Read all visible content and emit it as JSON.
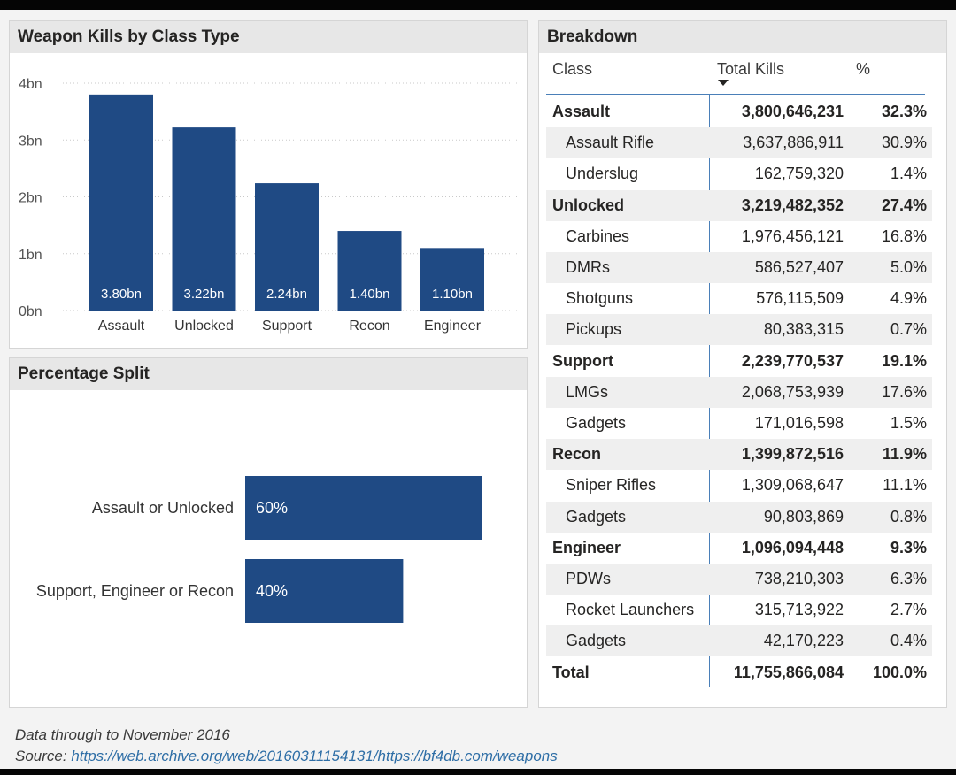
{
  "chart_data": [
    {
      "type": "bar",
      "title": "Weapon Kills by Class Type",
      "categories": [
        "Assault",
        "Unlocked",
        "Support",
        "Recon",
        "Engineer"
      ],
      "values": [
        3.8,
        3.22,
        2.24,
        1.4,
        1.1
      ],
      "data_labels": [
        "3.80bn",
        "3.22bn",
        "2.24bn",
        "1.40bn",
        "1.10bn"
      ],
      "yticks": [
        "0bn",
        "1bn",
        "2bn",
        "3bn",
        "4bn"
      ],
      "ylim": [
        0,
        4
      ],
      "grid": true,
      "bar_color": "#1f4a84"
    },
    {
      "type": "bar",
      "orientation": "horizontal",
      "title": "Percentage Split",
      "categories": [
        "Assault or Unlocked",
        "Support, Engineer or Recon"
      ],
      "values": [
        60,
        40
      ],
      "data_labels": [
        "60%",
        "40%"
      ],
      "bar_color": "#1f4a84"
    },
    {
      "type": "table",
      "title": "Breakdown",
      "columns": [
        "Class",
        "Total Kills",
        "%"
      ],
      "sorted_column": "Total Kills",
      "rows": [
        {
          "name": "Assault",
          "kills": "3,800,646,231",
          "pct": "32.3%",
          "level": "group"
        },
        {
          "name": "Assault Rifle",
          "kills": "3,637,886,911",
          "pct": "30.9%",
          "level": "item"
        },
        {
          "name": "Underslug",
          "kills": "162,759,320",
          "pct": "1.4%",
          "level": "item"
        },
        {
          "name": "Unlocked",
          "kills": "3,219,482,352",
          "pct": "27.4%",
          "level": "group"
        },
        {
          "name": "Carbines",
          "kills": "1,976,456,121",
          "pct": "16.8%",
          "level": "item"
        },
        {
          "name": "DMRs",
          "kills": "586,527,407",
          "pct": "5.0%",
          "level": "item"
        },
        {
          "name": "Shotguns",
          "kills": "576,115,509",
          "pct": "4.9%",
          "level": "item"
        },
        {
          "name": "Pickups",
          "kills": "80,383,315",
          "pct": "0.7%",
          "level": "item"
        },
        {
          "name": "Support",
          "kills": "2,239,770,537",
          "pct": "19.1%",
          "level": "group"
        },
        {
          "name": "LMGs",
          "kills": "2,068,753,939",
          "pct": "17.6%",
          "level": "item"
        },
        {
          "name": "Gadgets",
          "kills": "171,016,598",
          "pct": "1.5%",
          "level": "item"
        },
        {
          "name": "Recon",
          "kills": "1,399,872,516",
          "pct": "11.9%",
          "level": "group"
        },
        {
          "name": "Sniper Rifles",
          "kills": "1,309,068,647",
          "pct": "11.1%",
          "level": "item"
        },
        {
          "name": "Gadgets",
          "kills": "90,803,869",
          "pct": "0.8%",
          "level": "item"
        },
        {
          "name": "Engineer",
          "kills": "1,096,094,448",
          "pct": "9.3%",
          "level": "group"
        },
        {
          "name": "PDWs",
          "kills": "738,210,303",
          "pct": "6.3%",
          "level": "item"
        },
        {
          "name": "Rocket Launchers",
          "kills": "315,713,922",
          "pct": "2.7%",
          "level": "item"
        },
        {
          "name": "Gadgets",
          "kills": "42,170,223",
          "pct": "0.4%",
          "level": "item"
        },
        {
          "name": "Total",
          "kills": "11,755,866,084",
          "pct": "100.0%",
          "level": "total"
        }
      ]
    }
  ],
  "footer": {
    "note": "Data through to November 2016",
    "source_label": "Source:",
    "source_url": "https://web.archive.org/web/20160311154131/https://bf4db.com/weapons"
  },
  "colors": {
    "bar": "#1f4a84",
    "header_bg": "#e7e7e7",
    "link": "#2e6ea6"
  }
}
